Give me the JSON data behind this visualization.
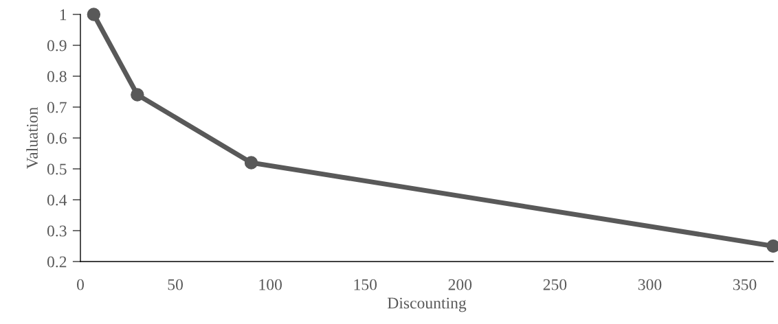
{
  "chart_data": {
    "type": "line",
    "xlabel": "Discounting",
    "ylabel": "Valuation",
    "x": [
      7,
      30,
      90,
      365
    ],
    "series": [
      {
        "color": "#595959",
        "values": [
          1,
          0.74,
          0.52,
          0.25
        ]
      }
    ],
    "xlim": [
      0,
      365
    ],
    "xticks": [
      0,
      50,
      100,
      150,
      200,
      250,
      300,
      350
    ],
    "ylim": [
      0.2,
      1
    ],
    "yticks": [
      0.2,
      0.3,
      0.4,
      0.5,
      0.6,
      0.7,
      0.8,
      0.9,
      1
    ],
    "marker": "circle",
    "line_style": "solid",
    "grid": false,
    "legend": false
  }
}
